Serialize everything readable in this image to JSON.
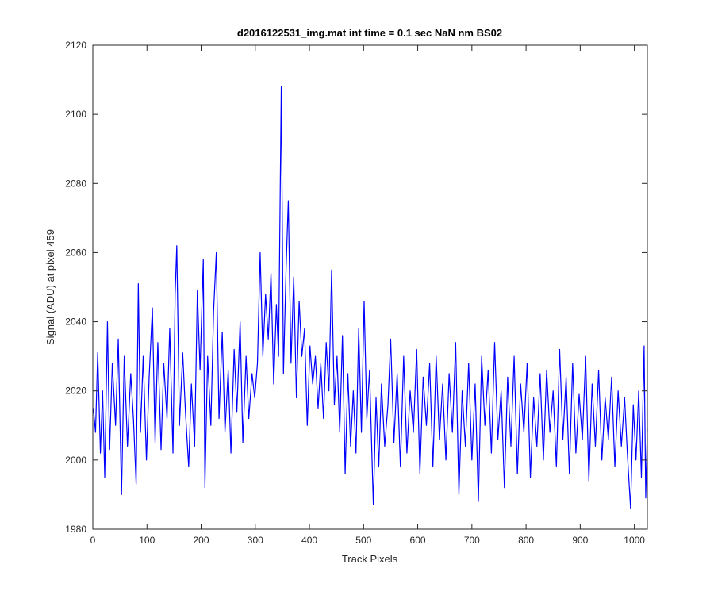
{
  "chart_data": {
    "type": "line",
    "title": "d2016122531_img.mat int time = 0.1 sec  NaN nm BS02",
    "xlabel": "Track Pixels",
    "ylabel": "Signal (ADU) at pixel 459",
    "color": "#0000ff",
    "xlim": [
      0,
      1024
    ],
    "ylim": [
      1980,
      2120
    ],
    "xticks": [
      0,
      100,
      200,
      300,
      400,
      500,
      600,
      700,
      800,
      900,
      1000
    ],
    "yticks": [
      1980,
      2000,
      2020,
      2040,
      2060,
      2080,
      2100,
      2120
    ],
    "grid": false,
    "x": [
      1,
      5,
      9,
      14,
      18,
      22,
      27,
      31,
      36,
      42,
      47,
      53,
      58,
      64,
      70,
      75,
      80,
      84,
      88,
      93,
      99,
      104,
      110,
      115,
      120,
      126,
      131,
      137,
      142,
      148,
      152,
      155,
      160,
      166,
      171,
      177,
      182,
      188,
      193,
      198,
      204,
      207,
      212,
      218,
      223,
      228,
      233,
      239,
      244,
      250,
      255,
      261,
      266,
      272,
      277,
      283,
      288,
      294,
      299,
      304,
      309,
      314,
      319,
      324,
      329,
      334,
      339,
      343,
      348,
      352,
      357,
      361,
      366,
      371,
      376,
      381,
      386,
      391,
      396,
      401,
      406,
      411,
      416,
      421,
      426,
      431,
      436,
      441,
      446,
      451,
      456,
      461,
      466,
      471,
      476,
      481,
      486,
      491,
      496,
      501,
      506,
      511,
      518,
      523,
      528,
      533,
      539,
      545,
      550,
      556,
      562,
      568,
      574,
      580,
      586,
      592,
      598,
      604,
      610,
      616,
      622,
      628,
      634,
      640,
      646,
      652,
      658,
      664,
      670,
      676,
      682,
      688,
      694,
      700,
      706,
      712,
      718,
      724,
      730,
      736,
      742,
      748,
      754,
      760,
      766,
      772,
      778,
      784,
      790,
      796,
      802,
      808,
      814,
      820,
      826,
      832,
      838,
      844,
      850,
      856,
      862,
      868,
      874,
      880,
      886,
      892,
      898,
      904,
      910,
      916,
      922,
      928,
      934,
      940,
      946,
      952,
      958,
      964,
      970,
      976,
      982,
      987,
      993,
      998,
      1003,
      1008,
      1013,
      1018,
      1021,
      1024
    ],
    "values": [
      2015,
      2008,
      2031,
      2002,
      2020,
      1995,
      2040,
      2003,
      2028,
      2010,
      2035,
      1990,
      2030,
      2004,
      2025,
      2012,
      1993,
      2051,
      2008,
      2030,
      2000,
      2024,
      2044,
      2005,
      2034,
      2003,
      2028,
      2012,
      2038,
      2002,
      2048,
      2062,
      2010,
      2031,
      2014,
      1998,
      2022,
      2004,
      2049,
      2026,
      2058,
      1992,
      2030,
      2010,
      2043,
      2060,
      2012,
      2037,
      2008,
      2026,
      2002,
      2032,
      2014,
      2040,
      2005,
      2030,
      2012,
      2025,
      2018,
      2028,
      2060,
      2030,
      2048,
      2035,
      2054,
      2022,
      2045,
      2030,
      2108,
      2025,
      2056,
      2075,
      2028,
      2053,
      2018,
      2046,
      2030,
      2038,
      2010,
      2033,
      2022,
      2030,
      2015,
      2028,
      2012,
      2034,
      2020,
      2055,
      2016,
      2030,
      2008,
      2036,
      1996,
      2025,
      2004,
      2020,
      2002,
      2038,
      2008,
      2046,
      2012,
      2026,
      1987,
      2018,
      1998,
      2022,
      2004,
      2016,
      2035,
      2005,
      2025,
      1998,
      2030,
      2002,
      2020,
      2008,
      2032,
      1996,
      2024,
      2010,
      2028,
      1998,
      2030,
      2006,
      2022,
      2000,
      2025,
      2008,
      2034,
      1990,
      2020,
      2004,
      2028,
      2000,
      2022,
      1988,
      2030,
      2010,
      2026,
      2002,
      2034,
      2006,
      2020,
      1992,
      2024,
      2004,
      2030,
      1996,
      2022,
      2008,
      2028,
      1995,
      2018,
      2004,
      2025,
      2000,
      2026,
      2008,
      2020,
      1998,
      2032,
      2006,
      2024,
      1996,
      2028,
      2002,
      2019,
      2006,
      2030,
      1994,
      2022,
      2004,
      2026,
      2000,
      2018,
      2006,
      2024,
      1998,
      2020,
      2004,
      2018,
      2002,
      1986,
      2016,
      2000,
      2020,
      1995,
      2033,
      1989,
      2009
    ]
  }
}
